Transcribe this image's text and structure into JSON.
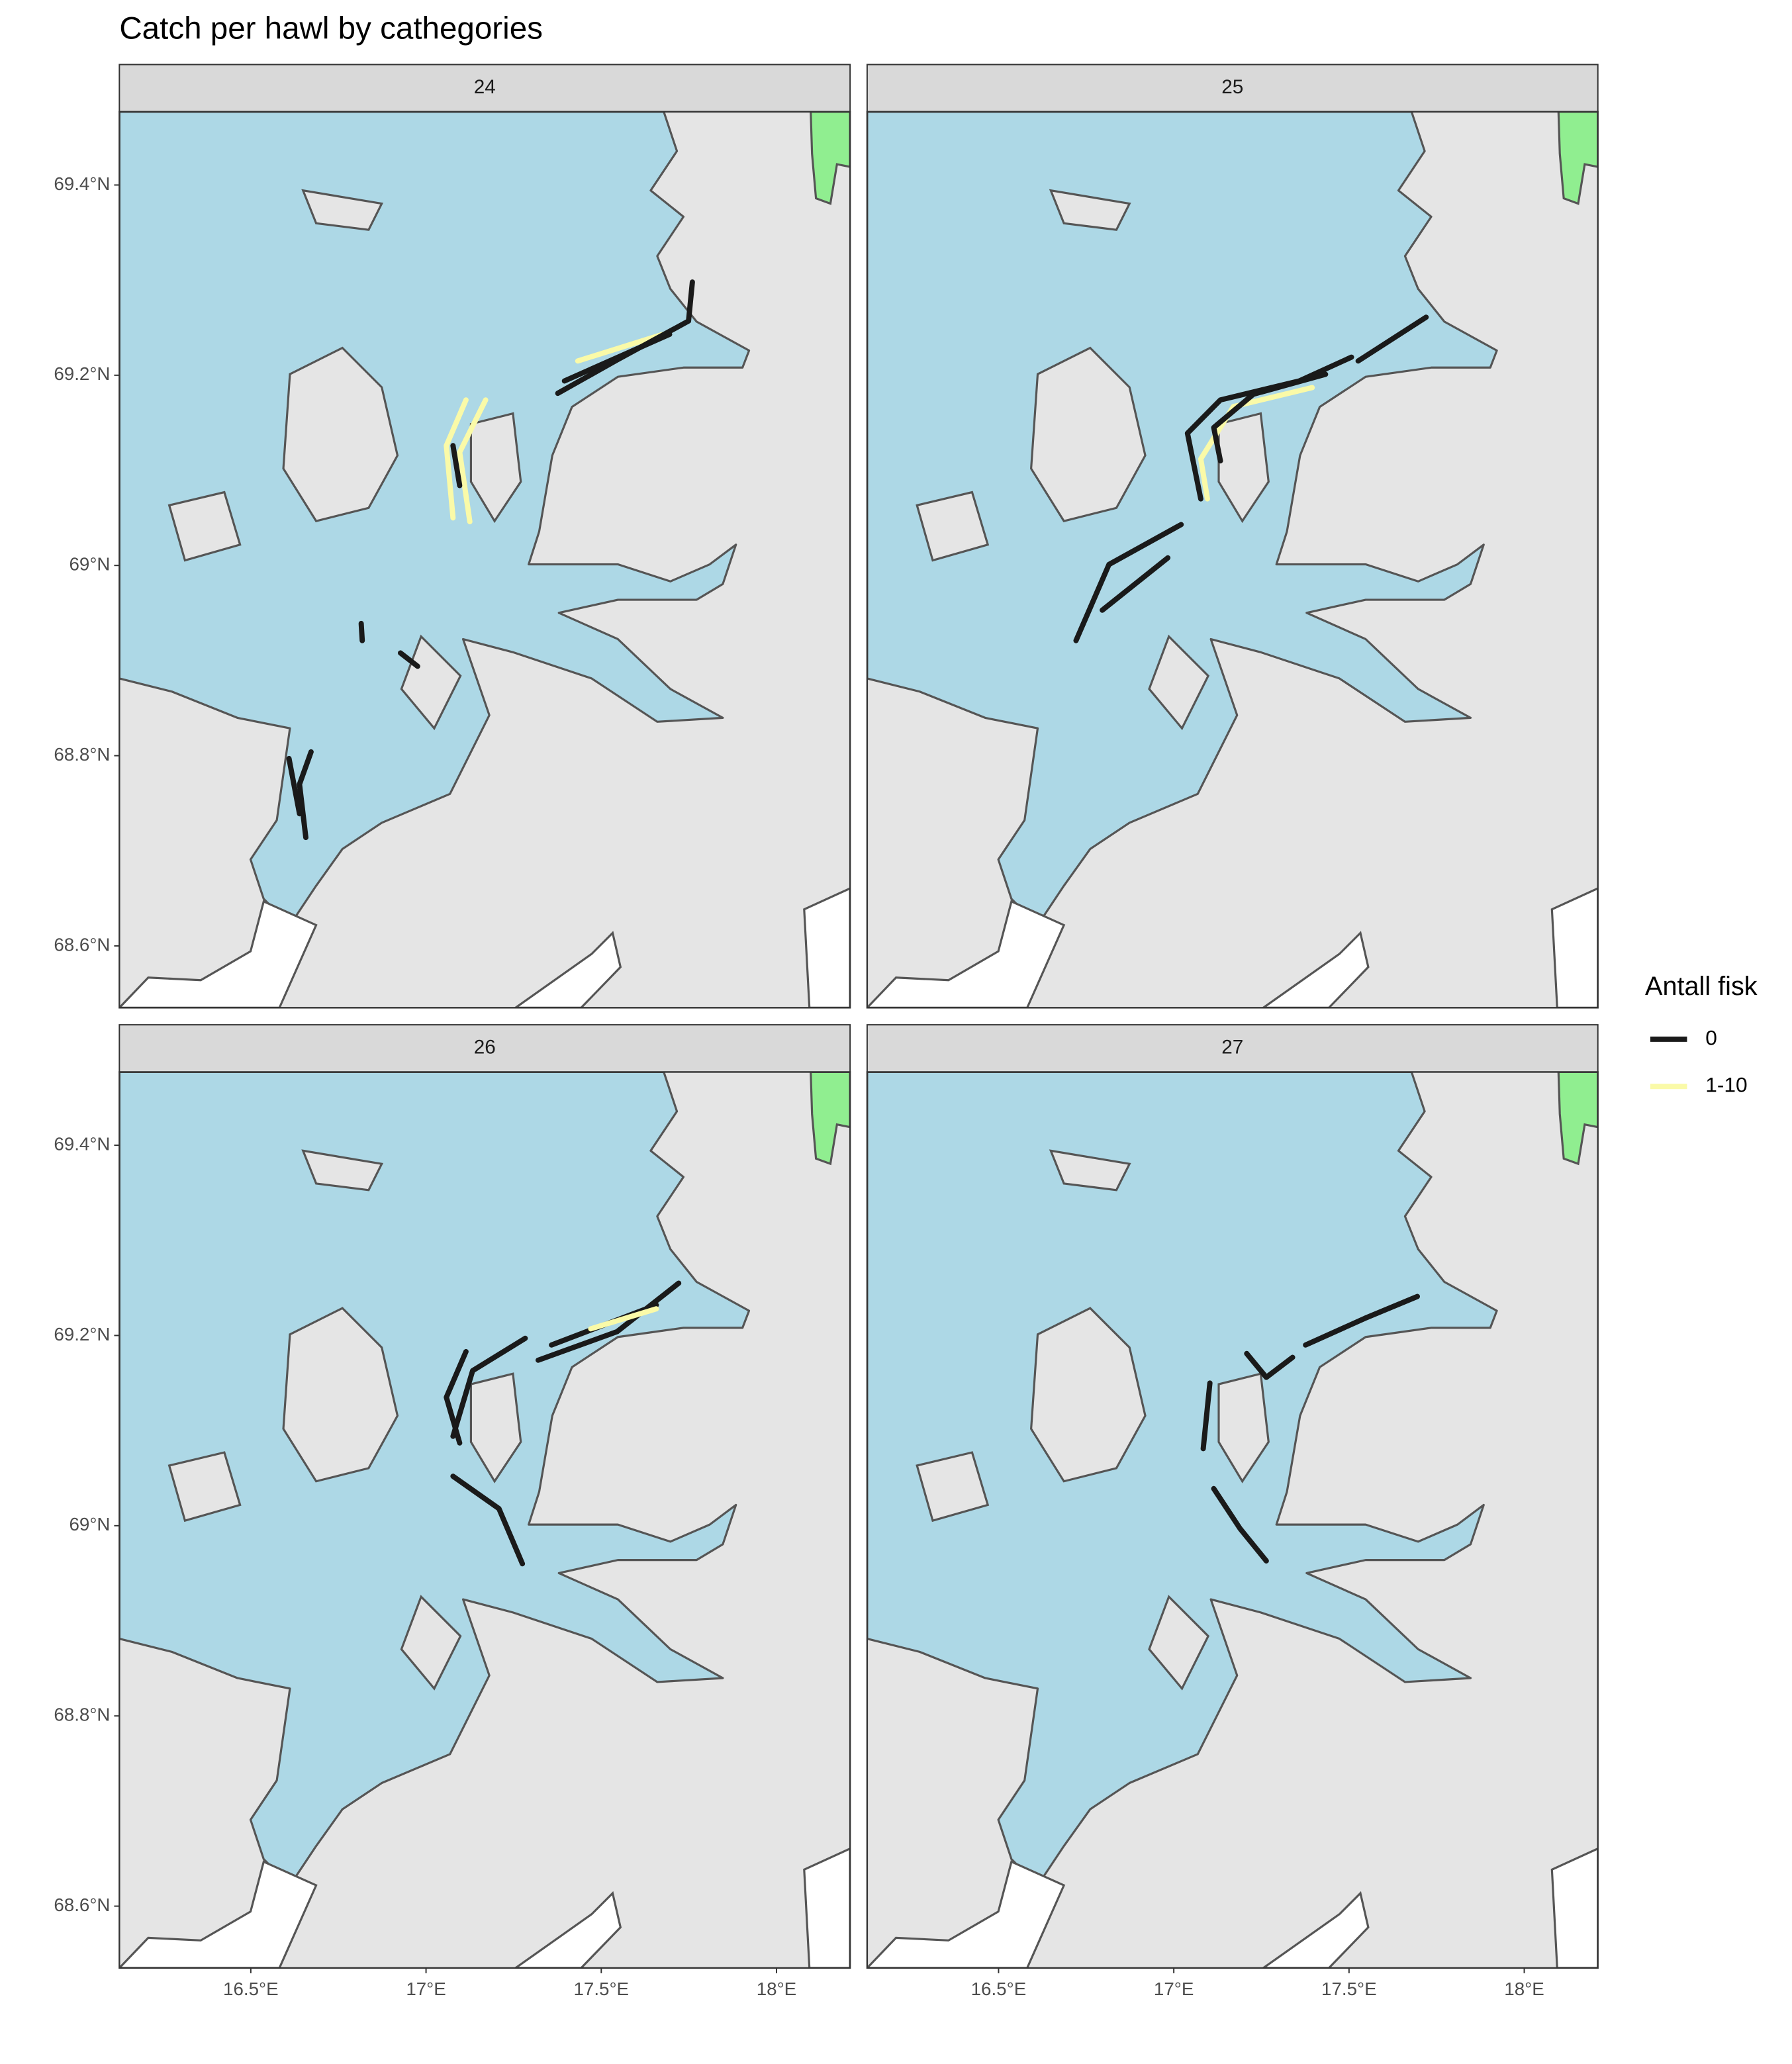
{
  "chart_data": {
    "type": "map",
    "title": "Catch per hawl by cathegories",
    "xlim": [
      16.125,
      18.21
    ],
    "ylim": [
      68.535,
      69.477
    ],
    "xticks": [
      {
        "value": 16.5,
        "label": "16.5°E"
      },
      {
        "value": 17,
        "label": "17°E"
      },
      {
        "value": 17.5,
        "label": "17.5°E"
      },
      {
        "value": 18,
        "label": "18°E"
      }
    ],
    "yticks": [
      {
        "value": 68.6,
        "label": "68.6°N"
      },
      {
        "value": 68.8,
        "label": "68.8°N"
      },
      {
        "value": 69,
        "label": "69°N"
      },
      {
        "value": 69.2,
        "label": "69.2°N"
      },
      {
        "value": 69.4,
        "label": "69.4°N"
      }
    ],
    "legend": {
      "title": "Antall fisk",
      "items": [
        {
          "name": "0",
          "color": "#1a1a1a"
        },
        {
          "name": "1-10",
          "color": "#fafaa8"
        }
      ]
    },
    "panels": [
      {
        "label": "24",
        "tracks": [
          {
            "category": "1-10",
            "lon": [
              17.114,
              17.058,
              17.077
            ],
            "lat": [
              69.174,
              69.126,
              69.05
            ]
          },
          {
            "category": "1-10",
            "lon": [
              17.17,
              17.096,
              17.125
            ],
            "lat": [
              69.174,
              69.119,
              69.046
            ]
          },
          {
            "category": "1-10",
            "lon": [
              17.433,
              17.676
            ],
            "lat": [
              69.215,
              69.243
            ]
          },
          {
            "category": "0",
            "lon": [
              17.376,
              17.545,
              17.749,
              17.76
            ],
            "lat": [
              69.181,
              69.216,
              69.257,
              69.298
            ]
          },
          {
            "category": "0",
            "lon": [
              17.395,
              17.695
            ],
            "lat": [
              69.194,
              69.243
            ]
          },
          {
            "category": "0",
            "lon": [
              17.077,
              17.096
            ],
            "lat": [
              69.126,
              69.084
            ]
          },
          {
            "category": "0",
            "lon": [
              16.815,
              16.818
            ],
            "lat": [
              68.939,
              68.921
            ]
          },
          {
            "category": "0",
            "lon": [
              16.927,
              16.976
            ],
            "lat": [
              68.908,
              68.894
            ]
          },
          {
            "category": "0",
            "lon": [
              16.672,
              16.639,
              16.657
            ],
            "lat": [
              68.804,
              68.77,
              68.714
            ]
          },
          {
            "category": "0",
            "lon": [
              16.609,
              16.639
            ],
            "lat": [
              68.797,
              68.739
            ]
          }
        ]
      },
      {
        "label": "25",
        "tracks": [
          {
            "category": "1-10",
            "lon": [
              17.395,
              17.17,
              17.077,
              17.096
            ],
            "lat": [
              69.187,
              69.167,
              69.112,
              69.07
            ]
          },
          {
            "category": "0",
            "lon": [
              17.526,
              17.72
            ],
            "lat": [
              69.215,
              69.261
            ]
          },
          {
            "category": "0",
            "lon": [
              17.507,
              17.358,
              17.133,
              17.039,
              17.077
            ],
            "lat": [
              69.219,
              69.194,
              69.174,
              69.139,
              69.07
            ]
          },
          {
            "category": "0",
            "lon": [
              17.433,
              17.227,
              17.114,
              17.133
            ],
            "lat": [
              69.201,
              69.18,
              69.145,
              69.11
            ]
          },
          {
            "category": "0",
            "lon": [
              17.021,
              16.815,
              16.721
            ],
            "lat": [
              69.043,
              69.001,
              68.921
            ]
          },
          {
            "category": "0",
            "lon": [
              16.983,
              16.796
            ],
            "lat": [
              69.008,
              68.953
            ]
          }
        ]
      },
      {
        "label": "26",
        "tracks": [
          {
            "category": "0",
            "lon": [
              17.32,
              17.545,
              17.721
            ],
            "lat": [
              69.174,
              69.204,
              69.255
            ]
          },
          {
            "category": "0",
            "lon": [
              17.358,
              17.657
            ],
            "lat": [
              69.19,
              69.232
            ]
          },
          {
            "category": "1-10",
            "lon": [
              17.47,
              17.657
            ],
            "lat": [
              69.207,
              69.228
            ]
          },
          {
            "category": "0",
            "lon": [
              17.283,
              17.133,
              17.077
            ],
            "lat": [
              69.197,
              69.163,
              69.094
            ]
          },
          {
            "category": "0",
            "lon": [
              17.114,
              17.058,
              17.096
            ],
            "lat": [
              69.183,
              69.135,
              69.087
            ]
          },
          {
            "category": "0",
            "lon": [
              17.077,
              17.208,
              17.275
            ],
            "lat": [
              69.052,
              69.018,
              68.96
            ]
          }
        ]
      },
      {
        "label": "27",
        "tracks": [
          {
            "category": "0",
            "lon": [
              17.376,
              17.545,
              17.695
            ],
            "lat": [
              69.19,
              69.218,
              69.241
            ]
          },
          {
            "category": "0",
            "lon": [
              17.339,
              17.264,
              17.208
            ],
            "lat": [
              69.177,
              69.156,
              69.181
            ]
          },
          {
            "category": "0",
            "lon": [
              17.103,
              17.084
            ],
            "lat": [
              69.15,
              69.081
            ]
          },
          {
            "category": "0",
            "lon": [
              17.114,
              17.189,
              17.264
            ],
            "lat": [
              69.039,
              68.997,
              68.963
            ]
          }
        ]
      }
    ]
  }
}
